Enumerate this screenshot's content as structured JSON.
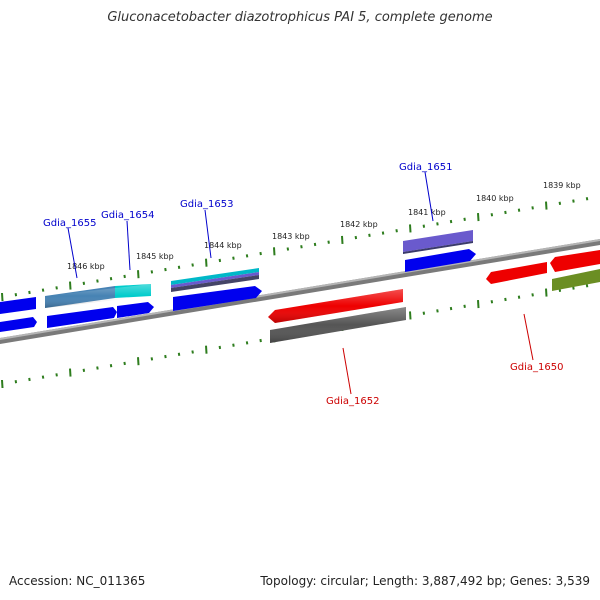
{
  "title": "Gluconacetobacter diazotrophicus PAI 5, complete genome",
  "footer": {
    "accession": "Accession: NC_011365",
    "summary": "Topology: circular; Length: 3,887,492 bp; Genes: 3,539"
  },
  "scale": [
    {
      "label": "1846 kbp"
    },
    {
      "label": "1845 kbp"
    },
    {
      "label": "1844 kbp"
    },
    {
      "label": "1843 kbp"
    },
    {
      "label": "1842 kbp"
    },
    {
      "label": "1841 kbp"
    },
    {
      "label": "1840 kbp"
    },
    {
      "label": "1839 kbp"
    }
  ],
  "gene_labels": [
    {
      "text": "Gdia_1655",
      "strand": "forward"
    },
    {
      "text": "Gdia_1654",
      "strand": "forward"
    },
    {
      "text": "Gdia_1653",
      "strand": "forward"
    },
    {
      "text": "Gdia_1651",
      "strand": "forward"
    },
    {
      "text": "Gdia_1652",
      "strand": "reverse"
    },
    {
      "text": "Gdia_1650",
      "strand": "reverse"
    }
  ],
  "colors": {
    "forward_label": "#0000cc",
    "reverse_label": "#cc0000",
    "backbone": "#808080",
    "scale_ticks": "#2e7d1e",
    "cds_blue": "#0000ee",
    "cds_red": "#ee0000",
    "cds_cyan": "#00cccc",
    "cds_steelblue": "#4682b4",
    "cds_slateblue": "#6a5acd",
    "cds_gray": "#555555",
    "cds_olive": "#6b8e23"
  }
}
